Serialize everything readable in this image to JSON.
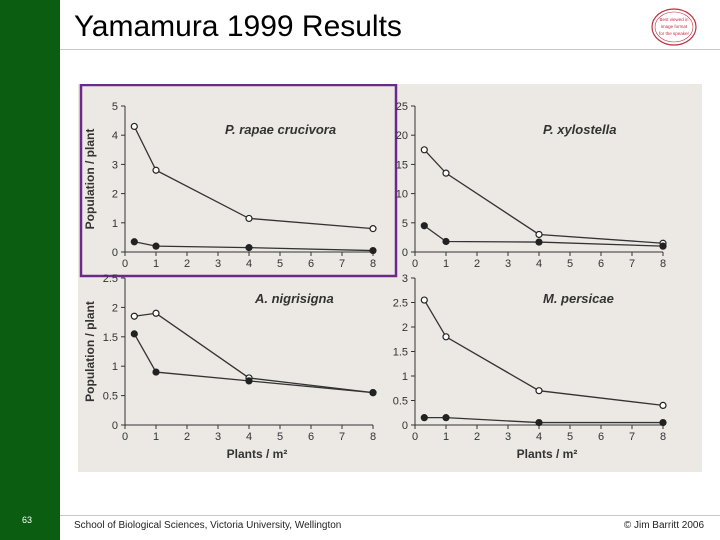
{
  "slide": {
    "title": "Yamamura 1999 Results",
    "page_number": "63",
    "footer_left": "School of Biological Sciences, Victoria University, Wellington",
    "footer_right": "© Jim Barritt 2006",
    "logo_lines": [
      "Best viewed in",
      "image format",
      "for the speaker"
    ]
  },
  "colors": {
    "side_bar": "#0b5e11",
    "highlight_box": "#6a2a8a",
    "figure_bg": "#ece9e4"
  },
  "chart_data": [
    {
      "type": "line",
      "title": "P. rapae crucivora",
      "xlabel": "",
      "ylabel": "Population / plant",
      "x": [
        0.3,
        1,
        4,
        8
      ],
      "xticks": [
        "0",
        "1",
        "2",
        "3",
        "4",
        "5",
        "6",
        "7",
        "8"
      ],
      "yticks": [
        "0",
        "1",
        "2",
        "3",
        "4",
        "5"
      ],
      "ylim": [
        0,
        5
      ],
      "highlighted": true,
      "series": [
        {
          "marker": "open",
          "values": [
            4.3,
            2.8,
            1.15,
            0.8
          ]
        },
        {
          "marker": "filled",
          "values": [
            0.35,
            0.2,
            0.15,
            0.05
          ]
        }
      ]
    },
    {
      "type": "line",
      "title": "P. xylostella",
      "xlabel": "",
      "ylabel": "",
      "x": [
        0.3,
        1,
        4,
        8
      ],
      "xticks": [
        "0",
        "1",
        "2",
        "3",
        "4",
        "5",
        "6",
        "7",
        "8"
      ],
      "yticks": [
        "0",
        "5",
        "10",
        "15",
        "20",
        "25"
      ],
      "ylim": [
        0,
        25
      ],
      "highlighted": false,
      "series": [
        {
          "marker": "open",
          "values": [
            17.5,
            13.5,
            3.0,
            1.5
          ]
        },
        {
          "marker": "filled",
          "values": [
            4.5,
            1.8,
            1.7,
            1.0
          ]
        }
      ]
    },
    {
      "type": "line",
      "title": "A. nigrisigna",
      "xlabel": "Plants / m²",
      "ylabel": "Population / plant",
      "x": [
        0.3,
        1,
        4,
        8
      ],
      "xticks": [
        "0",
        "1",
        "2",
        "3",
        "4",
        "5",
        "6",
        "7",
        "8"
      ],
      "yticks": [
        "0",
        "0.5",
        "1",
        "1.5",
        "2",
        "2.5"
      ],
      "ylim": [
        0,
        2.5
      ],
      "highlighted": false,
      "series": [
        {
          "marker": "open",
          "values": [
            1.85,
            1.9,
            0.8,
            0.55
          ]
        },
        {
          "marker": "filled",
          "values": [
            1.55,
            0.9,
            0.75,
            0.55
          ]
        }
      ]
    },
    {
      "type": "line",
      "title": "M. persicae",
      "xlabel": "Plants / m²",
      "ylabel": "",
      "x": [
        0.3,
        1,
        4,
        8
      ],
      "xticks": [
        "0",
        "1",
        "2",
        "3",
        "4",
        "5",
        "6",
        "7",
        "8"
      ],
      "yticks": [
        "0",
        "0.5",
        "1",
        "1.5",
        "2",
        "2.5",
        "3"
      ],
      "ylim": [
        0,
        3
      ],
      "highlighted": false,
      "series": [
        {
          "marker": "open",
          "values": [
            2.55,
            1.8,
            0.7,
            0.4
          ]
        },
        {
          "marker": "filled",
          "values": [
            0.15,
            0.15,
            0.05,
            0.05
          ]
        }
      ]
    }
  ]
}
